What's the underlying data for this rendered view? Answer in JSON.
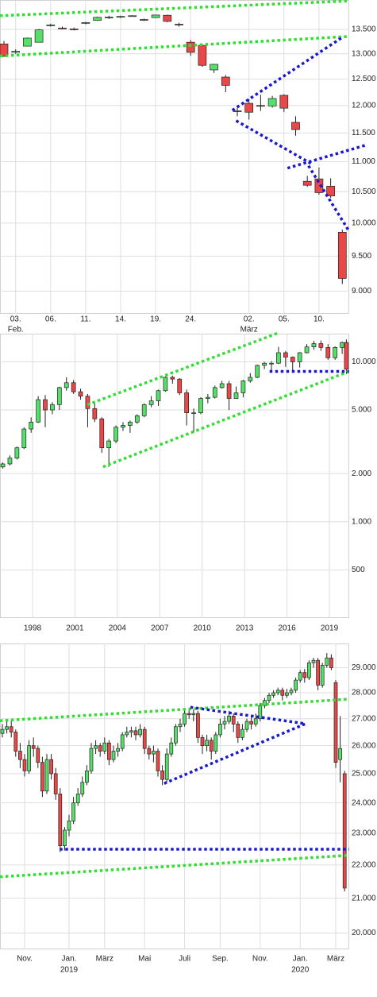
{
  "chart_data": [
    {
      "type": "candlestick",
      "log_scale": true,
      "grid": true,
      "up_color": "#55e06a",
      "down_color": "#e84848",
      "categories": [
        null,
        "03.",
        null,
        null,
        "06.",
        null,
        null,
        "11.",
        null,
        null,
        "14.",
        null,
        null,
        "19.",
        null,
        null,
        "24.",
        null,
        null,
        null,
        null,
        "02.",
        null,
        null,
        "05.",
        null,
        null,
        "10.",
        null,
        null
      ],
      "category_sublabels": [
        null,
        "Feb.",
        null,
        null,
        null,
        null,
        null,
        null,
        null,
        null,
        null,
        null,
        null,
        null,
        null,
        null,
        null,
        null,
        null,
        null,
        null,
        "März",
        null,
        null,
        null,
        null,
        null,
        null,
        null,
        null
      ],
      "open": [
        13200,
        13030,
        13155,
        13235,
        13580,
        13530,
        13510,
        13630,
        13690,
        13750,
        13760,
        13780,
        13710,
        13750,
        13800,
        13610,
        13235,
        13170,
        12680,
        12540,
        11900,
        12040,
        12000,
        11990,
        12190,
        11690,
        10670,
        10710,
        10590,
        9860
      ],
      "high": [
        13260,
        13090,
        13330,
        13510,
        13620,
        13560,
        13540,
        13660,
        13770,
        13790,
        13790,
        13800,
        13730,
        13810,
        13810,
        13640,
        13280,
        13200,
        12800,
        12580,
        11950,
        12120,
        12200,
        12180,
        12210,
        11800,
        10760,
        10900,
        10720,
        9900
      ],
      "low": [
        12940,
        13000,
        13150,
        13230,
        13560,
        13500,
        13480,
        13610,
        13680,
        13720,
        13740,
        13770,
        13680,
        13740,
        13650,
        13560,
        12960,
        12740,
        12620,
        12250,
        11800,
        11740,
        11900,
        11960,
        11880,
        11450,
        10580,
        10450,
        10400,
        9100
      ],
      "close": [
        12950,
        13050,
        13320,
        13490,
        13595,
        13520,
        13500,
        13645,
        13755,
        13760,
        13775,
        13790,
        13705,
        13805,
        13670,
        13600,
        13030,
        12770,
        12790,
        12380,
        11890,
        11875,
        11990,
        12130,
        11950,
        11560,
        10605,
        10485,
        10430,
        9180
      ],
      "ylim": [
        8690,
        14130
      ],
      "yticks": [
        {
          "value": 9000,
          "label": "9.000"
        },
        {
          "value": 9500,
          "label": "9.500"
        },
        {
          "value": 10000,
          "label": "10.000"
        },
        {
          "value": 10500,
          "label": "10.500"
        },
        {
          "value": 11000,
          "label": "11.000"
        },
        {
          "value": 11500,
          "label": "11.500"
        },
        {
          "value": 12000,
          "label": "12.000"
        },
        {
          "value": 12500,
          "label": "12.500"
        },
        {
          "value": 13000,
          "label": "13.000"
        },
        {
          "value": 13500,
          "label": "13.500"
        }
      ],
      "trendlines": [
        {
          "color": "#33dd33",
          "points": [
            [
              -0.34,
              13790
            ],
            [
              29.6,
              14110
            ]
          ]
        },
        {
          "color": "#33dd33",
          "points": [
            [
              -0.34,
              12955
            ],
            [
              29.6,
              13355
            ]
          ]
        },
        {
          "color": "#1a1acc",
          "points": [
            [
              28.9,
              13320
            ],
            [
              19.5,
              11900
            ]
          ]
        },
        {
          "color": "#1a1acc",
          "points": [
            [
              19.9,
              11720
            ],
            [
              26.3,
              10970
            ]
          ]
        },
        {
          "color": "#1a1acc",
          "points": [
            [
              24.3,
              10890
            ],
            [
              31.1,
              11290
            ]
          ]
        },
        {
          "color": "#1a1acc",
          "points": [
            [
              26.1,
              10930
            ],
            [
              29.6,
              9870
            ]
          ]
        }
      ]
    },
    {
      "type": "candlestick",
      "log_scale": true,
      "grid": true,
      "up_color": "#55e06a",
      "down_color": "#e84848",
      "x": [
        1995.9,
        1996.4,
        1996.9,
        1997.4,
        1997.9,
        1998.4,
        1998.9,
        1999.4,
        1999.9,
        2000.4,
        2000.9,
        2001.4,
        2001.9,
        2002.4,
        2002.9,
        2003.4,
        2003.9,
        2004.4,
        2004.9,
        2005.4,
        2005.9,
        2006.4,
        2006.9,
        2007.4,
        2007.9,
        2008.4,
        2008.9,
        2009.4,
        2009.9,
        2010.4,
        2010.9,
        2011.4,
        2011.9,
        2012.4,
        2012.9,
        2013.4,
        2013.9,
        2014.4,
        2014.9,
        2015.4,
        2015.9,
        2016.4,
        2016.9,
        2017.4,
        2017.9,
        2018.4,
        2018.9,
        2019.4,
        2019.9,
        2020.2
      ],
      "open": [
        2200,
        2300,
        2500,
        2900,
        3800,
        4200,
        5800,
        5000,
        5400,
        6900,
        7400,
        6500,
        6100,
        5100,
        4400,
        2900,
        3200,
        3900,
        4000,
        4200,
        4600,
        5400,
        5700,
        6600,
        8000,
        7800,
        6400,
        4800,
        4800,
        5900,
        6000,
        6900,
        7300,
        5900,
        6400,
        7600,
        8000,
        9500,
        9800,
        9800,
        11400,
        10700,
        10000,
        11400,
        12400,
        13000,
        12300,
        10600,
        12300,
        13200
      ],
      "high": [
        2350,
        2600,
        2950,
        3900,
        4500,
        6100,
        6200,
        5600,
        7000,
        8000,
        7700,
        6800,
        6300,
        5500,
        4500,
        3300,
        4000,
        4200,
        4300,
        4700,
        5500,
        6100,
        6700,
        8100,
        8200,
        7900,
        6700,
        5100,
        6000,
        6300,
        7100,
        7600,
        7600,
        7000,
        7700,
        8500,
        9600,
        10000,
        10100,
        12400,
        11700,
        10800,
        11500,
        12900,
        13500,
        13600,
        12900,
        12500,
        13400,
        13800
      ],
      "low": [
        2150,
        2250,
        2450,
        2850,
        3600,
        4150,
        3900,
        4700,
        5000,
        6600,
        6300,
        5800,
        3900,
        4200,
        2700,
        2200,
        3100,
        3700,
        3600,
        4100,
        4500,
        5200,
        5300,
        6500,
        7300,
        6200,
        4000,
        3600,
        4700,
        5500,
        5900,
        6800,
        5000,
        5900,
        6000,
        7400,
        7900,
        9000,
        8600,
        9700,
        9300,
        8700,
        9200,
        11300,
        11900,
        11700,
        10300,
        10300,
        11200,
        8400
      ],
      "close": [
        2300,
        2500,
        2900,
        3800,
        4200,
        5800,
        5000,
        5400,
        6900,
        7400,
        6500,
        6100,
        5100,
        4400,
        2900,
        3200,
        3900,
        4000,
        4200,
        4600,
        5400,
        5700,
        6600,
        8000,
        7800,
        6400,
        4800,
        4800,
        5900,
        6000,
        6900,
        7300,
        5900,
        6400,
        7600,
        8000,
        9500,
        9800,
        9800,
        11400,
        10700,
        10000,
        11400,
        12400,
        13000,
        12300,
        10600,
        12300,
        13200,
        9000
      ],
      "xlim": [
        1995.7,
        2020.4
      ],
      "xticks": [
        1998,
        2001,
        2004,
        2007,
        2010,
        2013,
        2016,
        2019
      ],
      "ylim": [
        250,
        15000
      ],
      "yticks": [
        500,
        {
          "value": 1000,
          "label": "1.000"
        },
        {
          "value": 2000,
          "label": "2.000"
        },
        {
          "value": 5000,
          "label": "5.000"
        },
        {
          "value": 10000,
          "label": "10.000"
        }
      ],
      "trendlines": [
        {
          "color": "#33dd33",
          "points": [
            [
              2001.87,
              5385
            ],
            [
              2015.33,
              15100
            ]
          ]
        },
        {
          "color": "#33dd33",
          "points": [
            [
              2002.99,
              2205
            ],
            [
              2020.38,
              8715
            ]
          ]
        },
        {
          "color": "#1a1acc",
          "points": [
            [
              2014.77,
              8715
            ],
            [
              2020.38,
              8715
            ]
          ]
        }
      ]
    },
    {
      "type": "candlestick",
      "log_scale": true,
      "grid": true,
      "up_color": "#55e06a",
      "down_color": "#e84848",
      "categories": [
        null,
        null,
        null,
        null,
        null,
        "Nov.",
        null,
        null,
        null,
        null,
        null,
        null,
        null,
        null,
        null,
        "Jan.",
        null,
        null,
        null,
        null,
        null,
        null,
        null,
        "März",
        null,
        null,
        null,
        null,
        null,
        null,
        null,
        null,
        "Mai",
        null,
        null,
        null,
        null,
        null,
        null,
        null,
        null,
        "Juli",
        null,
        null,
        null,
        null,
        null,
        null,
        null,
        "Sep.",
        null,
        null,
        null,
        null,
        null,
        null,
        null,
        null,
        "Nov.",
        null,
        null,
        null,
        null,
        null,
        null,
        null,
        null,
        "Jan.",
        null,
        null,
        null,
        null,
        null,
        null,
        null,
        "März",
        null,
        null
      ],
      "category_sublabels": [
        null,
        null,
        null,
        null,
        null,
        null,
        null,
        null,
        null,
        null,
        null,
        null,
        null,
        null,
        null,
        "2019",
        null,
        null,
        null,
        null,
        null,
        null,
        null,
        null,
        null,
        null,
        null,
        null,
        null,
        null,
        null,
        null,
        null,
        null,
        null,
        null,
        null,
        null,
        null,
        null,
        null,
        null,
        null,
        null,
        null,
        null,
        null,
        null,
        null,
        null,
        null,
        null,
        null,
        null,
        null,
        null,
        null,
        null,
        null,
        null,
        null,
        null,
        null,
        null,
        null,
        null,
        null,
        "2020",
        null,
        null,
        null,
        null,
        null,
        null,
        null,
        null,
        null,
        null
      ],
      "open": [
        26450,
        26600,
        26700,
        26500,
        25800,
        25500,
        25100,
        26000,
        25900,
        25400,
        24400,
        25500,
        25000,
        24300,
        22600,
        23100,
        23400,
        24000,
        24300,
        24700,
        25100,
        25900,
        26000,
        25800,
        26100,
        25500,
        25800,
        25900,
        26400,
        26500,
        26550,
        26400,
        26600,
        25900,
        25700,
        25800,
        25100,
        24800,
        25700,
        26100,
        26700,
        26800,
        27200,
        27150,
        27200,
        26300,
        26000,
        26200,
        25800,
        26400,
        26800,
        26900,
        27100,
        26800,
        26300,
        26600,
        26900,
        26800,
        27000,
        27500,
        27700,
        27900,
        28000,
        28100,
        27900,
        28000,
        28100,
        28500,
        28800,
        28600,
        29200,
        29300,
        28300,
        29100,
        29400,
        28400,
        25500,
        25000
      ],
      "high": [
        26800,
        26900,
        26950,
        26600,
        26100,
        25700,
        26200,
        26300,
        26000,
        25600,
        25700,
        25700,
        25200,
        24500,
        23200,
        23600,
        24200,
        24500,
        24900,
        25300,
        26100,
        26200,
        26100,
        26300,
        26200,
        26000,
        26100,
        26500,
        26700,
        26700,
        26700,
        26800,
        26700,
        26000,
        26000,
        25900,
        25300,
        25900,
        26300,
        26800,
        27000,
        27400,
        27400,
        27350,
        27300,
        26400,
        26400,
        26300,
        26500,
        27000,
        27100,
        27300,
        27200,
        26900,
        26800,
        27000,
        27100,
        27200,
        27600,
        27800,
        28000,
        28100,
        28200,
        28200,
        28150,
        28200,
        28600,
        28900,
        28950,
        29300,
        29400,
        29400,
        29200,
        29600,
        29550,
        28500,
        27100,
        25100
      ],
      "low": [
        26300,
        26450,
        26300,
        25600,
        25200,
        24900,
        25000,
        25600,
        25200,
        24200,
        24300,
        24800,
        24100,
        22400,
        22450,
        22900,
        23300,
        23900,
        24200,
        24600,
        25000,
        25700,
        25600,
        25700,
        25300,
        25400,
        25600,
        25800,
        26300,
        26300,
        26200,
        26300,
        25700,
        25500,
        25400,
        24900,
        24600,
        24700,
        25600,
        26000,
        26500,
        26700,
        27000,
        26900,
        26100,
        25700,
        25800,
        25500,
        25700,
        26300,
        26600,
        26800,
        26500,
        26100,
        26200,
        26500,
        26600,
        26700,
        26900,
        27400,
        27600,
        27800,
        27900,
        27700,
        27800,
        27900,
        28000,
        28400,
        28400,
        28500,
        29000,
        28100,
        28200,
        29000,
        28900,
        25200,
        24700,
        21200
      ],
      "close": [
        26600,
        26700,
        26500,
        25800,
        25500,
        25100,
        26000,
        25900,
        25400,
        24400,
        25500,
        25000,
        24300,
        22600,
        23100,
        23400,
        24000,
        24300,
        24700,
        25100,
        25900,
        26000,
        25800,
        26100,
        25500,
        25800,
        25900,
        26400,
        26500,
        26550,
        26400,
        26600,
        25900,
        25700,
        25800,
        25100,
        24800,
        25700,
        26100,
        26700,
        26800,
        27200,
        27150,
        27200,
        26300,
        26000,
        26200,
        25800,
        26400,
        26800,
        26900,
        27100,
        26800,
        26300,
        26600,
        26900,
        26800,
        27000,
        27500,
        27700,
        27900,
        28000,
        28100,
        27900,
        28000,
        28100,
        28500,
        28800,
        28600,
        29200,
        29300,
        28300,
        29100,
        29400,
        29000,
        25400,
        25900,
        21300
      ],
      "ylim": [
        19550,
        30000
      ],
      "yticks": [
        {
          "value": 20000,
          "label": "20.000"
        },
        {
          "value": 21000,
          "label": "21.000"
        },
        {
          "value": 22000,
          "label": "22.000"
        },
        {
          "value": 23000,
          "label": "23.000"
        },
        {
          "value": 24000,
          "label": "24.000"
        },
        {
          "value": 25000,
          "label": "25.000"
        },
        {
          "value": 26000,
          "label": "26.000"
        },
        {
          "value": 27000,
          "label": "27.000"
        },
        {
          "value": 28000,
          "label": "28.000"
        },
        {
          "value": 29000,
          "label": "29.000"
        }
      ],
      "trendlines": [
        {
          "color": "#33dd33",
          "points": [
            [
              -0.54,
              26925
            ],
            [
              78.0,
              27750
            ]
          ]
        },
        {
          "color": "#33dd33",
          "points": [
            [
              -0.54,
              21640
            ],
            [
              78.0,
              22300
            ]
          ]
        },
        {
          "color": "#1a1acc",
          "points": [
            [
              12.9,
              22490
            ],
            [
              78.0,
              22490
            ]
          ]
        },
        {
          "color": "#1a1acc",
          "points": [
            [
              36.4,
              24660
            ],
            [
              68.2,
              26810
            ]
          ]
        },
        {
          "color": "#1a1acc",
          "points": [
            [
              42.3,
              27440
            ],
            [
              68.2,
              26810
            ]
          ]
        }
      ]
    }
  ]
}
